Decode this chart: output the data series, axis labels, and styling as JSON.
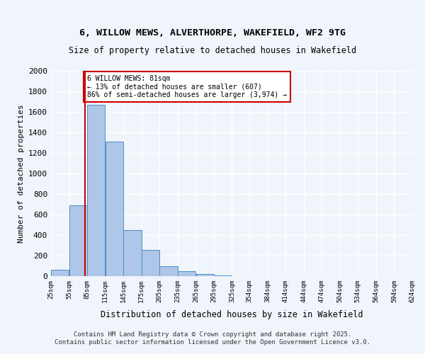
{
  "title_line1": "6, WILLOW MEWS, ALVERTHORPE, WAKEFIELD, WF2 9TG",
  "title_line2": "Size of property relative to detached houses in Wakefield",
  "xlabel": "Distribution of detached houses by size in Wakefield",
  "ylabel": "Number of detached properties",
  "bar_color": "#aec6e8",
  "bar_edge_color": "#4a90c4",
  "background_color": "#f0f4fb",
  "grid_color": "#ffffff",
  "annotation_box_color": "#cc0000",
  "vline_color": "#cc0000",
  "annotation_text": "6 WILLOW MEWS: 81sqm\n← 13% of detached houses are smaller (607)\n86% of semi-detached houses are larger (3,974) →",
  "footer_line1": "Contains HM Land Registry data © Crown copyright and database right 2025.",
  "footer_line2": "Contains public sector information licensed under the Open Government Licence v3.0.",
  "bins": [
    25,
    55,
    85,
    115,
    145,
    175,
    205,
    235,
    265,
    295,
    325,
    354,
    384,
    414,
    444,
    474,
    504,
    534,
    564,
    594,
    624
  ],
  "bin_labels": [
    "25sqm",
    "55sqm",
    "85sqm",
    "115sqm",
    "145sqm",
    "175sqm",
    "205sqm",
    "235sqm",
    "265sqm",
    "295sqm",
    "325sqm",
    "354sqm",
    "384sqm",
    "414sqm",
    "444sqm",
    "474sqm",
    "504sqm",
    "534sqm",
    "564sqm",
    "594sqm",
    "624sqm"
  ],
  "counts": [
    65,
    693,
    1672,
    1310,
    447,
    253,
    95,
    50,
    20,
    8,
    3,
    2,
    1,
    1,
    0,
    0,
    0,
    0,
    0,
    0
  ],
  "vline_x": 81,
  "ylim": [
    0,
    2000
  ],
  "property_size": 81
}
